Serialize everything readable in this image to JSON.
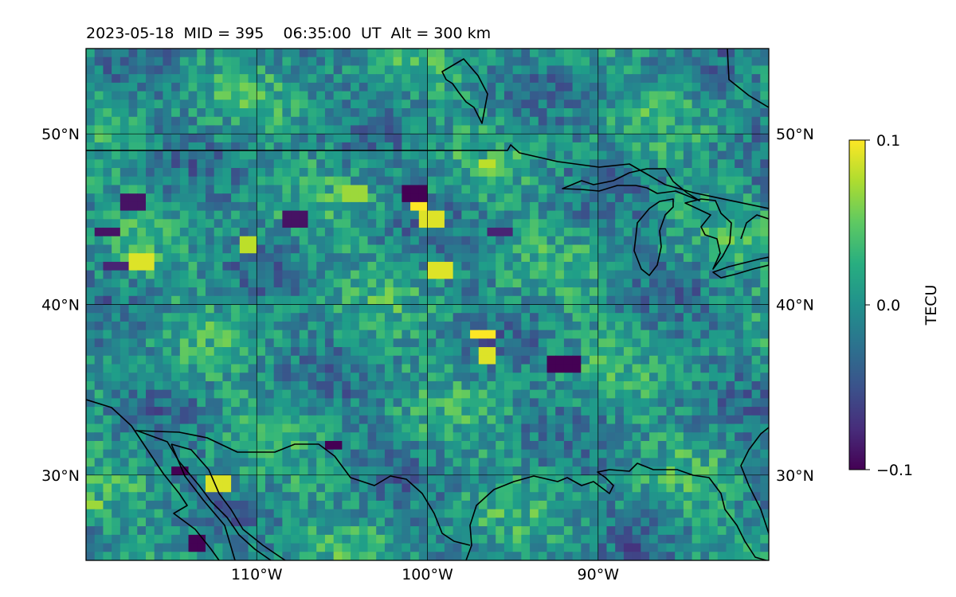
{
  "chart_data": {
    "type": "heatmap",
    "title": "2023-05-18  MID = 395    06:35:00  UT  Alt = 300 km",
    "projection": "equirectangular",
    "extent": {
      "lon": [
        -120,
        -80
      ],
      "lat": [
        25,
        55
      ]
    },
    "grid": true,
    "x_ticks": [
      {
        "value": -110,
        "label": "110°W"
      },
      {
        "value": -100,
        "label": "100°W"
      },
      {
        "value": -90,
        "label": "90°W"
      }
    ],
    "y_ticks": [
      {
        "value": 50,
        "label": "50°N"
      },
      {
        "value": 40,
        "label": "40°N"
      },
      {
        "value": 30,
        "label": "30°N"
      }
    ],
    "colorbar": {
      "label": "TECU",
      "colormap": "viridis",
      "range": [
        -0.1,
        0.1
      ],
      "ticks": [
        {
          "value": 0.1,
          "label": "0.1"
        },
        {
          "value": 0.0,
          "label": "0.0"
        },
        {
          "value": -0.1,
          "label": "−0.1"
        }
      ]
    },
    "field": {
      "cell_size_deg": 0.5,
      "baseline_value": 0.0,
      "description_values_range": [
        -0.1,
        0.1
      ],
      "hotspots_positive": [
        {
          "lon": -100.5,
          "lat": 45.8,
          "value": 0.1
        },
        {
          "lon": -99.7,
          "lat": 45.0,
          "value": 0.09
        },
        {
          "lon": -99.3,
          "lat": 42.0,
          "value": 0.09
        },
        {
          "lon": -96.8,
          "lat": 38.2,
          "value": 0.1
        },
        {
          "lon": -96.6,
          "lat": 37.1,
          "value": 0.09
        },
        {
          "lon": -116.8,
          "lat": 42.6,
          "value": 0.09
        },
        {
          "lon": -112.3,
          "lat": 29.6,
          "value": 0.09
        },
        {
          "lon": -110.4,
          "lat": 43.5,
          "value": 0.08
        },
        {
          "lon": -119.7,
          "lat": 28.2,
          "value": 0.07
        },
        {
          "lon": -96.5,
          "lat": 48.3,
          "value": 0.08
        },
        {
          "lon": -104.3,
          "lat": 46.4,
          "value": 0.07
        }
      ],
      "hotspots_negative": [
        {
          "lon": -113.4,
          "lat": 25.9,
          "value": -0.1
        },
        {
          "lon": -114.6,
          "lat": 30.2,
          "value": -0.1
        },
        {
          "lon": -105.5,
          "lat": 31.8,
          "value": -0.1
        },
        {
          "lon": -107.8,
          "lat": 45.1,
          "value": -0.09
        },
        {
          "lon": -118.7,
          "lat": 44.3,
          "value": -0.09
        },
        {
          "lon": -117.2,
          "lat": 45.9,
          "value": -0.09
        },
        {
          "lon": -100.8,
          "lat": 46.5,
          "value": -0.1
        },
        {
          "lon": -91.5,
          "lat": 36.6,
          "value": -0.1
        },
        {
          "lon": -92.4,
          "lat": 36.4,
          "value": -0.1
        },
        {
          "lon": -118.2,
          "lat": 42.2,
          "value": -0.08
        },
        {
          "lon": -88.1,
          "lat": 25.8,
          "value": -0.07
        },
        {
          "lon": -95.8,
          "lat": 44.3,
          "value": -0.08
        }
      ]
    }
  }
}
